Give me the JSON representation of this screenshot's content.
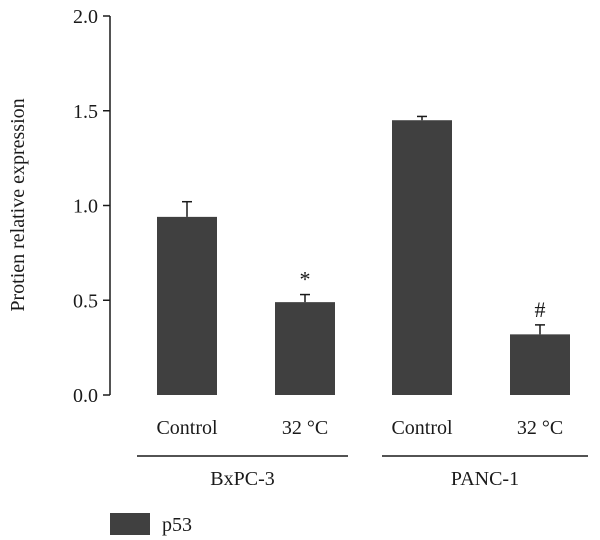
{
  "chart_data": {
    "type": "bar",
    "ylabel": "Protien relative expression",
    "ylim": [
      0,
      2.0
    ],
    "yticks": [
      "0.0",
      "0.5",
      "1.0",
      "1.5",
      "2.0"
    ],
    "categories": [
      "Control",
      "32 °C",
      "Control",
      "32 °C"
    ],
    "groups": [
      {
        "label": "BxPC-3",
        "categories": [
          "Control",
          "32 °C"
        ]
      },
      {
        "label": "PANC-1",
        "categories": [
          "Control",
          "32 °C"
        ]
      }
    ],
    "series": [
      {
        "name": "p53",
        "values": [
          0.94,
          0.49,
          1.45,
          0.32
        ],
        "errors": [
          0.08,
          0.04,
          0.02,
          0.05
        ],
        "annotations": [
          "",
          "*",
          "",
          "#"
        ]
      }
    ],
    "bar_color": "#404040",
    "legend": {
      "position": "bottom-left",
      "label": "p53"
    }
  }
}
